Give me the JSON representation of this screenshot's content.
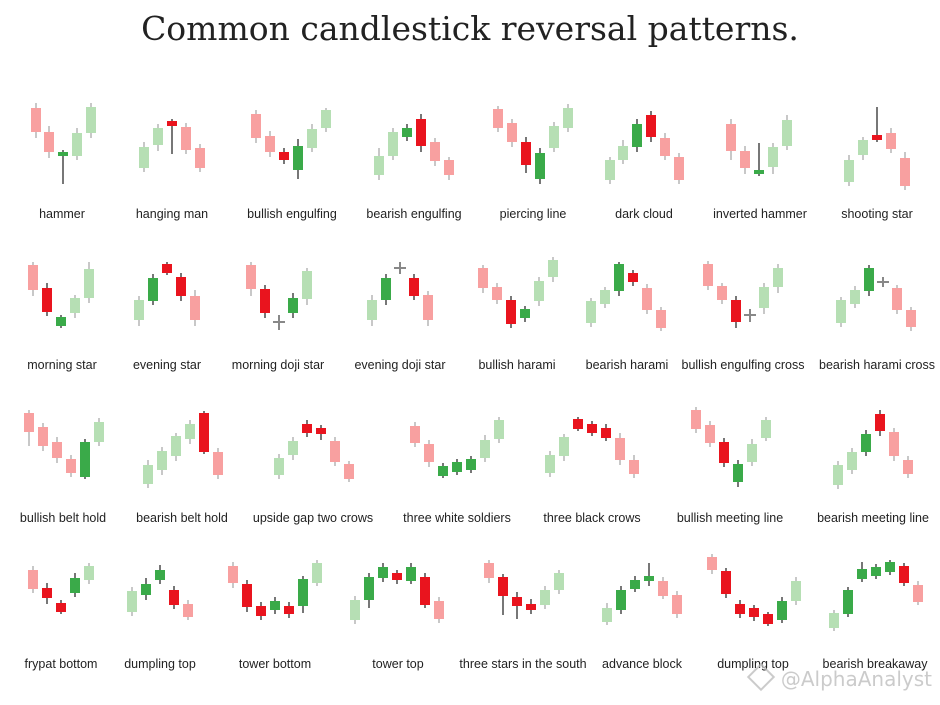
{
  "title": "Common candlestick reversal patterns.",
  "watermark": "@AlphaAnalyst",
  "colors": {
    "green": "#3aaa49",
    "red": "#e9141e",
    "light_green": "#b6dfb4",
    "light_red": "#f8a0a0",
    "doji": "#888888"
  },
  "chart_data": {
    "type": "candlestick-pattern-grid",
    "patterns": [
      {
        "label": "hammer"
      },
      {
        "label": "hanging man"
      },
      {
        "label": "bullish engulfing"
      },
      {
        "label": "bearish engulfing"
      },
      {
        "label": "piercing line"
      },
      {
        "label": "dark cloud"
      },
      {
        "label": "inverted hammer"
      },
      {
        "label": "shooting star"
      },
      {
        "label": "morning star"
      },
      {
        "label": "evening star"
      },
      {
        "label": "morning doji star"
      },
      {
        "label": "evening doji star"
      },
      {
        "label": "bullish harami"
      },
      {
        "label": "bearish harami"
      },
      {
        "label": "bullish engulfing cross"
      },
      {
        "label": "bearish harami cross"
      },
      {
        "label": "bullish belt hold"
      },
      {
        "label": "bearish belt hold"
      },
      {
        "label": "upside gap two crows"
      },
      {
        "label": "three white soldiers"
      },
      {
        "label": "three black crows"
      },
      {
        "label": "bullish meeting line"
      },
      {
        "label": "bearish meeting line"
      },
      {
        "label": "frypat bottom"
      },
      {
        "label": "dumpling top"
      },
      {
        "label": "tower bottom"
      },
      {
        "label": "tower top"
      },
      {
        "label": "three stars in the south"
      },
      {
        "label": "advance block"
      },
      {
        "label": "dumpling top"
      },
      {
        "label": "bearish breakaway"
      }
    ]
  }
}
